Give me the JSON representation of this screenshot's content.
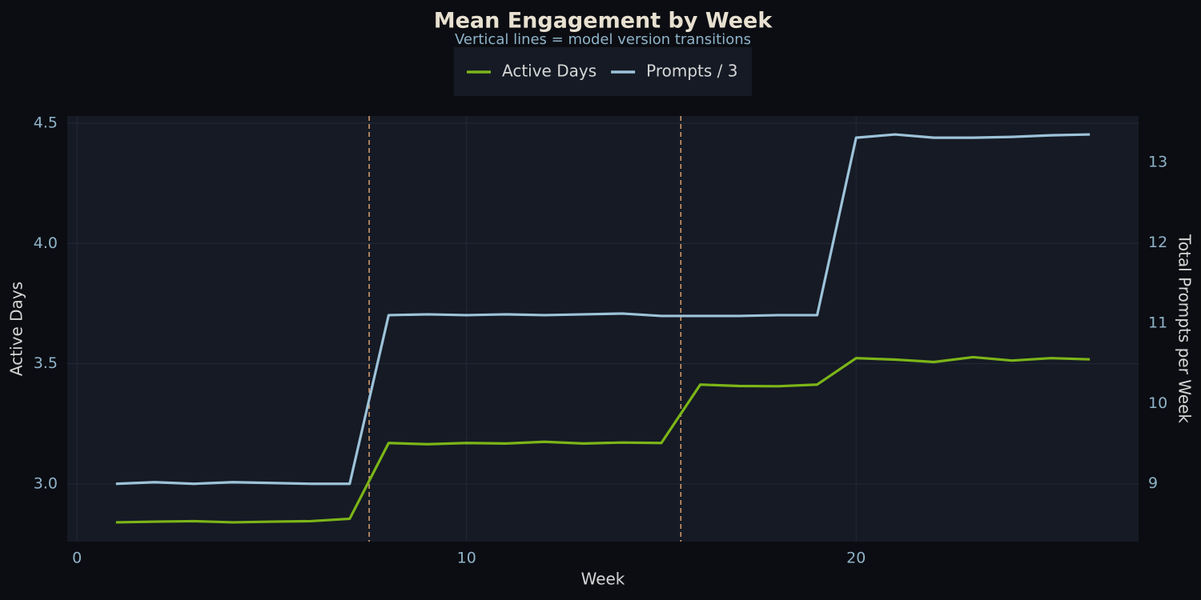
{
  "chart_data": {
    "type": "line",
    "title": "Mean Engagement by Week",
    "subtitle": "Vertical lines = model version transitions",
    "x_label": "Week",
    "y_label": "Active Days",
    "y2_label": "Total Prompts per Week",
    "x": [
      1,
      2,
      3,
      4,
      5,
      6,
      7,
      8,
      9,
      10,
      11,
      12,
      13,
      14,
      15,
      16,
      17,
      18,
      19,
      20,
      21,
      22,
      23,
      24,
      25,
      26
    ],
    "series": [
      {
        "name": "Active Days",
        "color": "#7cb518",
        "values": [
          2.84,
          2.843,
          2.845,
          2.84,
          2.843,
          2.845,
          2.855,
          3.17,
          3.165,
          3.17,
          3.168,
          3.175,
          3.168,
          3.172,
          3.17,
          3.413,
          3.407,
          3.406,
          3.413,
          3.523,
          3.517,
          3.507,
          3.527,
          3.513,
          3.523,
          3.518
        ]
      },
      {
        "name": "Prompts / 3",
        "color": "#9dc3d9",
        "axis": "y2",
        "values": [
          9.0,
          9.02,
          9.0,
          9.02,
          9.01,
          9.0,
          9.0,
          11.1,
          11.11,
          11.1,
          11.11,
          11.1,
          11.11,
          11.12,
          11.09,
          11.09,
          11.09,
          11.1,
          11.1,
          13.31,
          13.35,
          13.31,
          13.31,
          13.32,
          13.34,
          13.35
        ]
      }
    ],
    "vlines": [
      7.5,
      15.5
    ],
    "vline_color": "#d09a6a",
    "xlim": [
      -0.25,
      27.25
    ],
    "xticks": [
      0,
      10,
      20
    ],
    "ylim": [
      2.76,
      4.53
    ],
    "yticks": [
      {
        "value": 3.0,
        "label": "3.0"
      },
      3.5,
      {
        "value": 4.0,
        "label": "4.0"
      },
      4.5
    ],
    "y2lim": [
      8.28,
      13.58
    ],
    "y2ticks": [
      9,
      10,
      11,
      12,
      13
    ],
    "grid": true,
    "legend": "top"
  }
}
